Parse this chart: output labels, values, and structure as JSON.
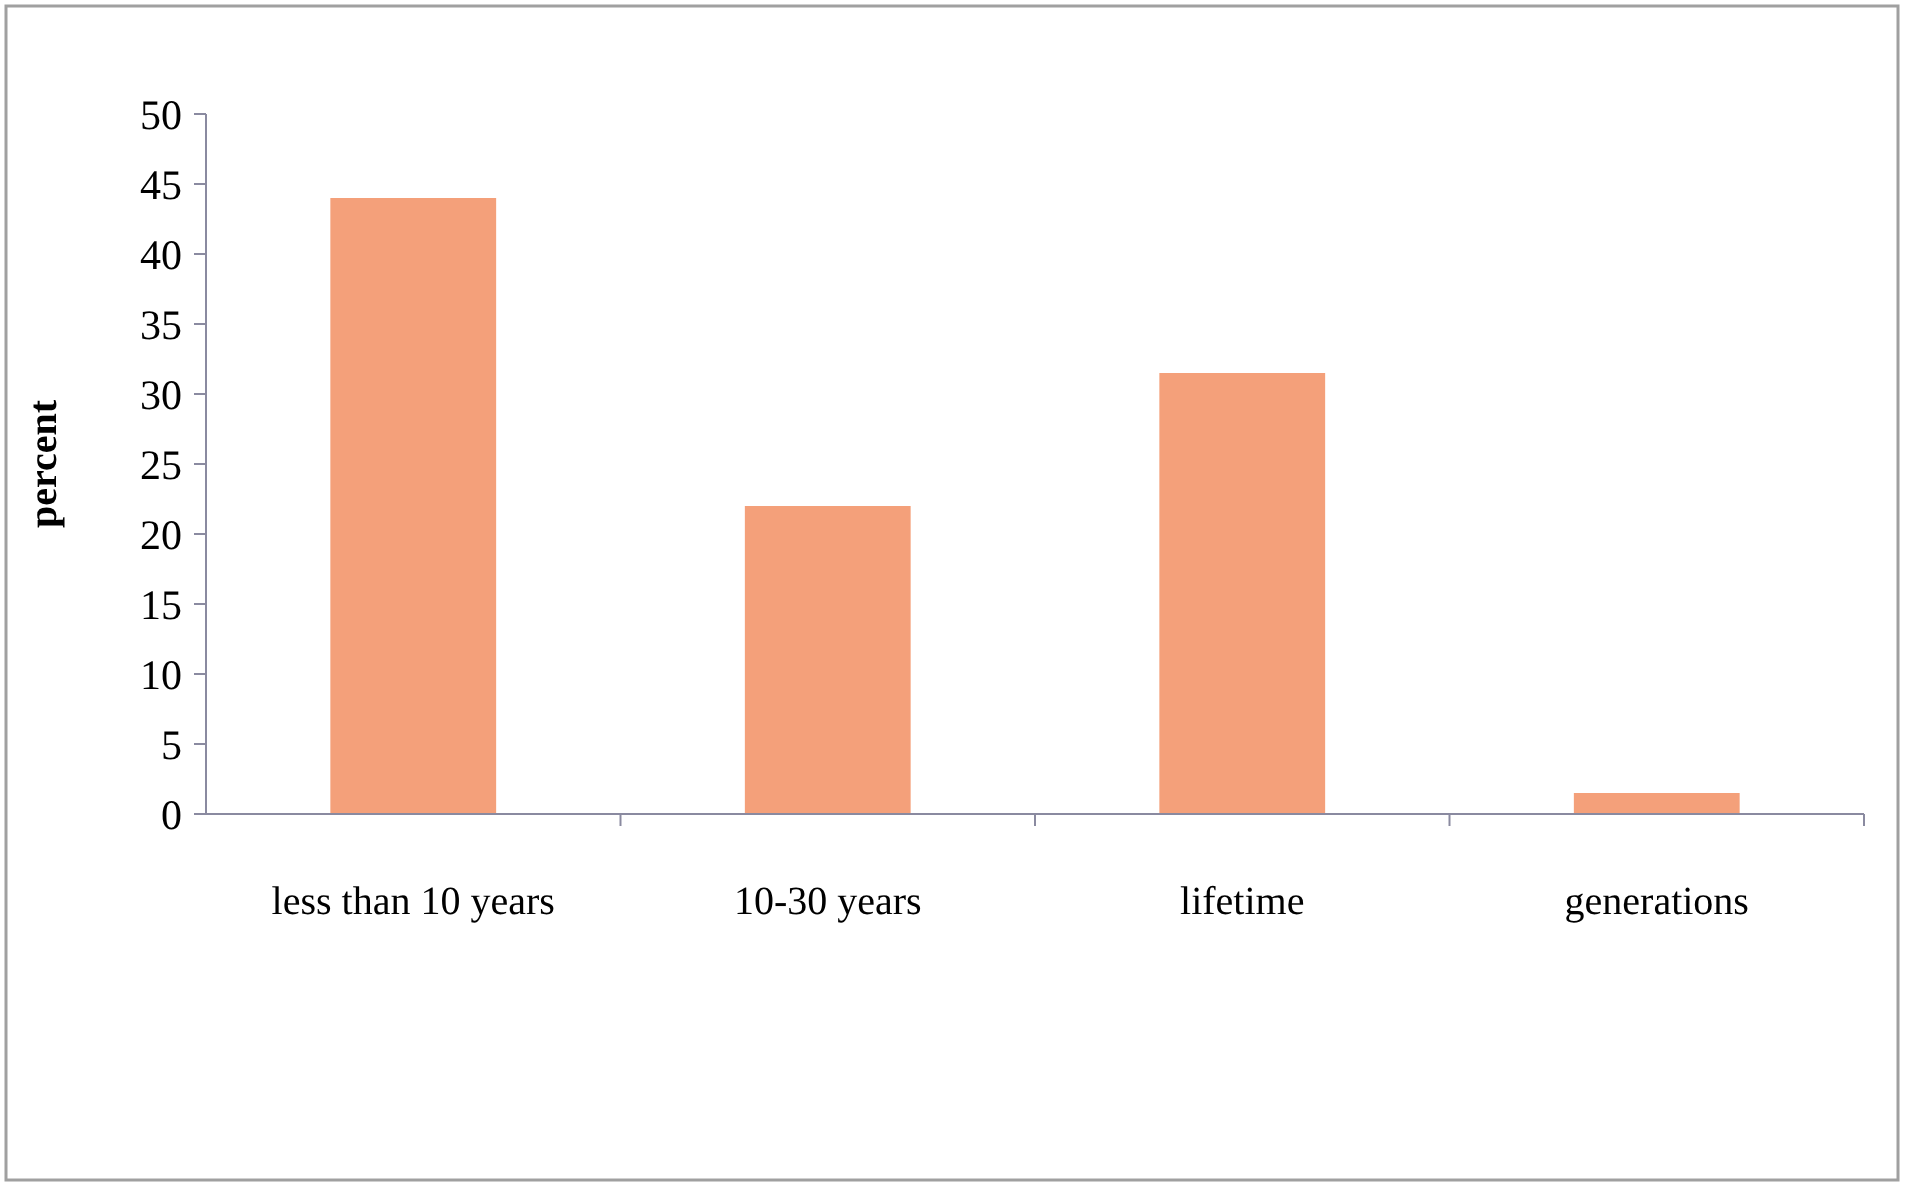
{
  "chart_data": {
    "type": "bar",
    "ylabel": "percent",
    "categories": [
      "less than 10 years",
      "10-30 years",
      "lifetime",
      "generations"
    ],
    "values": [
      44,
      22,
      31.5,
      1.5
    ],
    "color": "#f4a07a",
    "ylim": [
      0,
      50
    ],
    "yticks": [
      0,
      5,
      10,
      15,
      20,
      25,
      30,
      35,
      40,
      45,
      50
    ],
    "grid": false
  }
}
